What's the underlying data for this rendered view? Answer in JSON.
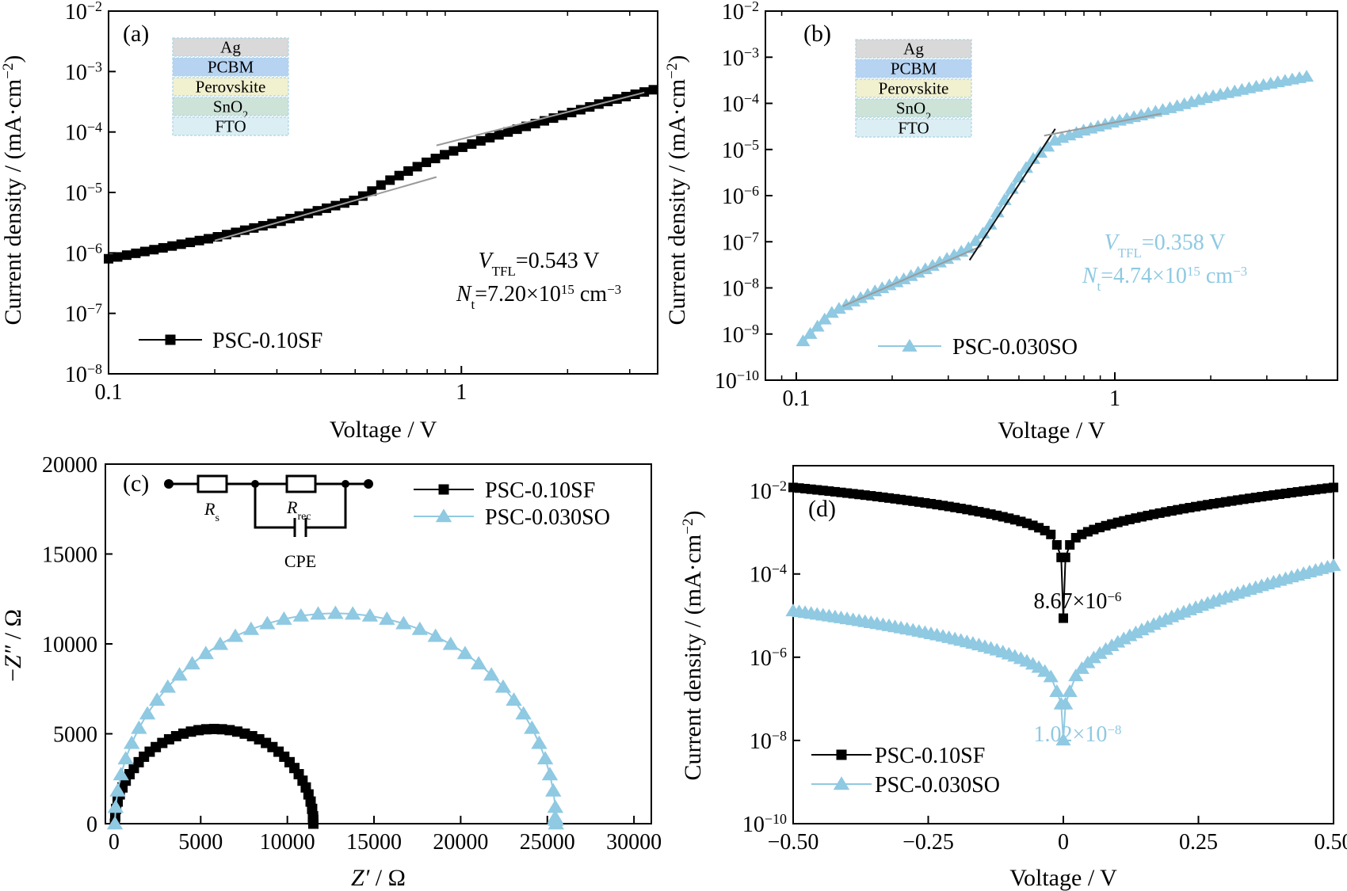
{
  "colors": {
    "black_series": "#000000",
    "blue_series": "#8fc9e2",
    "fit_line_black": "#111111",
    "fit_line_grey": "#9a9a9a",
    "layer_ag": "#d9d9d9",
    "layer_pcbm": "#b7d3f2",
    "layer_perovskite": "#f1f0cf",
    "layer_sno2": "#cde3d8",
    "layer_fto": "#dbeef4"
  },
  "layers": [
    {
      "name": "Ag",
      "sub": "",
      "color": "layer_ag"
    },
    {
      "name": "PCBM",
      "sub": "",
      "color": "layer_pcbm"
    },
    {
      "name": "Perovskite",
      "sub": "",
      "color": "layer_perovskite"
    },
    {
      "name": "SnO",
      "sub": "2",
      "color": "layer_sno2"
    },
    {
      "name": "FTO",
      "sub": "",
      "color": "layer_fto"
    }
  ],
  "circuit": {
    "r1": "R",
    "r1_sub": "s",
    "r2": "R",
    "r2_sub": "rec",
    "cpe": "CPE"
  },
  "chart_data": [
    {
      "panel": "(a)",
      "type": "scatter",
      "xscale": "log",
      "yscale": "log",
      "xlabel": "Voltage / V",
      "ylabel": "Current density / (mA·cm",
      "ylabel_sup": "−2",
      "xlim": [
        0.1,
        3.6
      ],
      "ylim": [
        1e-08,
        0.01
      ],
      "xticks": [
        {
          "label": "0.1",
          "value": 0.1
        },
        {
          "label": "1",
          "value": 1
        }
      ],
      "yticks": [
        {
          "base": "10",
          "exp": "−8",
          "value": 1e-08
        },
        {
          "base": "10",
          "exp": "−7",
          "value": 1e-07
        },
        {
          "base": "10",
          "exp": "−6",
          "value": 1e-06
        },
        {
          "base": "10",
          "exp": "−5",
          "value": 1e-05
        },
        {
          "base": "10",
          "exp": "−4",
          "value": 0.0001
        },
        {
          "base": "10",
          "exp": "−3",
          "value": 0.001
        },
        {
          "base": "10",
          "exp": "−2",
          "value": 0.01
        }
      ],
      "series": [
        {
          "name": "PSC-0.10SF",
          "marker": "square",
          "color": "black_series",
          "x": [
            0.1,
            0.2,
            0.3,
            0.5,
            0.55,
            0.6,
            0.7,
            0.8,
            1.0,
            1.2,
            1.5,
            2.0,
            2.5,
            3.0,
            3.5
          ],
          "y": [
            8e-07,
            1.8e-06,
            3.2e-06,
            7.5e-06,
            1e-05,
            1.4e-05,
            2.2e-05,
            3.2e-05,
            5.5e-05,
            8e-05,
            0.00012,
            0.0002,
            0.0003,
            0.0004,
            0.0005
          ]
        }
      ],
      "fit_lines": [
        {
          "color": "fit_line_grey",
          "x": [
            0.2,
            0.85
          ],
          "y": [
            1.6e-06,
            1.8e-05
          ]
        },
        {
          "color": "fit_line_grey",
          "x": [
            0.85,
            3.3
          ],
          "y": [
            6e-05,
            0.00045
          ]
        }
      ],
      "annotations": {
        "vtfl_sym": "V",
        "vtfl_sub": "TFL",
        "vtfl_val": "=0.543 V",
        "nt_sym": "N",
        "nt_sub": "t",
        "nt_val": "=7.20×10",
        "nt_exp": "15",
        "nt_unit": " cm",
        "nt_unit_exp": "−3"
      }
    },
    {
      "panel": "(b)",
      "type": "scatter",
      "xscale": "log",
      "yscale": "log",
      "xlabel": "Voltage / V",
      "ylabel": "Current density / (mA·cm",
      "ylabel_sup": "−2",
      "xlim": [
        0.08,
        5.0
      ],
      "ylim": [
        1e-10,
        0.01
      ],
      "xticks": [
        {
          "label": "0.1",
          "value": 0.1
        },
        {
          "label": "1",
          "value": 1
        }
      ],
      "yticks": [
        {
          "base": "10",
          "exp": "−10",
          "value": 1e-10
        },
        {
          "base": "10",
          "exp": "−9",
          "value": 1e-09
        },
        {
          "base": "10",
          "exp": "−8",
          "value": 1e-08
        },
        {
          "base": "10",
          "exp": "−7",
          "value": 1e-07
        },
        {
          "base": "10",
          "exp": "−6",
          "value": 1e-06
        },
        {
          "base": "10",
          "exp": "−5",
          "value": 1e-05
        },
        {
          "base": "10",
          "exp": "−4",
          "value": 0.0001
        },
        {
          "base": "10",
          "exp": "−3",
          "value": 0.001
        },
        {
          "base": "10",
          "exp": "−2",
          "value": 0.01
        }
      ],
      "series": [
        {
          "name": "PSC-0.030SO",
          "marker": "triangle",
          "color": "blue_series",
          "x": [
            0.105,
            0.12,
            0.13,
            0.15,
            0.18,
            0.22,
            0.28,
            0.35,
            0.4,
            0.45,
            0.5,
            0.55,
            0.65,
            0.8,
            1.0,
            1.5,
            2.0,
            3.0,
            4.0
          ],
          "y": [
            7e-10,
            1.8e-09,
            3e-09,
            5e-09,
            9e-09,
            1.6e-08,
            3.5e-08,
            7.5e-08,
            2e-07,
            8e-07,
            2.5e-06,
            6e-06,
            1.6e-05,
            2.6e-05,
            4e-05,
            8e-05,
            0.00014,
            0.00026,
            0.00038
          ]
        }
      ],
      "fit_lines": [
        {
          "color": "fit_line_grey",
          "x": [
            0.14,
            0.38
          ],
          "y": [
            4e-09,
            8e-08
          ]
        },
        {
          "color": "fit_line_black",
          "x": [
            0.35,
            0.65
          ],
          "y": [
            4e-08,
            2.8e-05
          ]
        },
        {
          "color": "fit_line_grey",
          "x": [
            0.6,
            1.4
          ],
          "y": [
            2e-05,
            6e-05
          ]
        }
      ],
      "annotations": {
        "vtfl_sym": "V",
        "vtfl_sub": "TFL",
        "vtfl_val": "=0.358 V",
        "nt_sym": "N",
        "nt_sub": "t",
        "nt_val": "=4.74×10",
        "nt_exp": "15",
        "nt_unit": " cm",
        "nt_unit_exp": "−3"
      }
    },
    {
      "panel": "(c)",
      "type": "scatter",
      "xlabel": "Z′ / Ω",
      "ylabel": "−Z″ / Ω",
      "xlim": [
        -500,
        31000
      ],
      "ylim": [
        0,
        20000
      ],
      "xticks": [
        0,
        5000,
        10000,
        15000,
        20000,
        25000,
        30000
      ],
      "yticks": [
        0,
        5000,
        10000,
        15000,
        20000
      ],
      "series": [
        {
          "name": "PSC-0.10SF",
          "marker": "square",
          "color": "black_series",
          "arc": {
            "x0": 50,
            "x1": 11500,
            "points": 40
          }
        },
        {
          "name": "PSC-0.030SO",
          "marker": "triangle",
          "color": "blue_series",
          "arc": {
            "x0": 50,
            "x1": 25500,
            "points": 40
          }
        }
      ]
    },
    {
      "panel": "(d)",
      "type": "scatter",
      "yscale": "log",
      "xlabel": "Voltage / V",
      "ylabel": "Current density / (mA·cm",
      "ylabel_sup": "−2",
      "xlim": [
        -0.5,
        0.5
      ],
      "ylim": [
        1e-10,
        0.04
      ],
      "xticks": [
        {
          "label": "−0.50",
          "value": -0.5
        },
        {
          "label": "−0.25",
          "value": -0.25
        },
        {
          "label": "0",
          "value": 0
        },
        {
          "label": "0.25",
          "value": 0.25
        },
        {
          "label": "0.50",
          "value": 0.5
        }
      ],
      "yticks": [
        {
          "base": "10",
          "exp": "−10",
          "value": 1e-10
        },
        {
          "base": "10",
          "exp": "−8",
          "value": 1e-08
        },
        {
          "base": "10",
          "exp": "−6",
          "value": 1e-06
        },
        {
          "base": "10",
          "exp": "−4",
          "value": 0.0001
        },
        {
          "base": "10",
          "exp": "−2",
          "value": 0.01
        }
      ],
      "series": [
        {
          "name": "PSC-0.10SF",
          "marker": "square",
          "color": "black_series",
          "jmin": 8.67e-06,
          "jleft": 0.012,
          "jright": 0.012,
          "jnear": 0.0005
        },
        {
          "name": "PSC-0.030SO",
          "marker": "triangle",
          "color": "blue_series",
          "jmin": 1.02e-08,
          "jleft": 1.3e-05,
          "jright": 0.00016,
          "jnear": 1.5e-07
        }
      ],
      "annotations": {
        "black_min": "8.67×10",
        "black_min_exp": "−6",
        "blue_min": "1.02×10",
        "blue_min_exp": "−8"
      }
    }
  ]
}
